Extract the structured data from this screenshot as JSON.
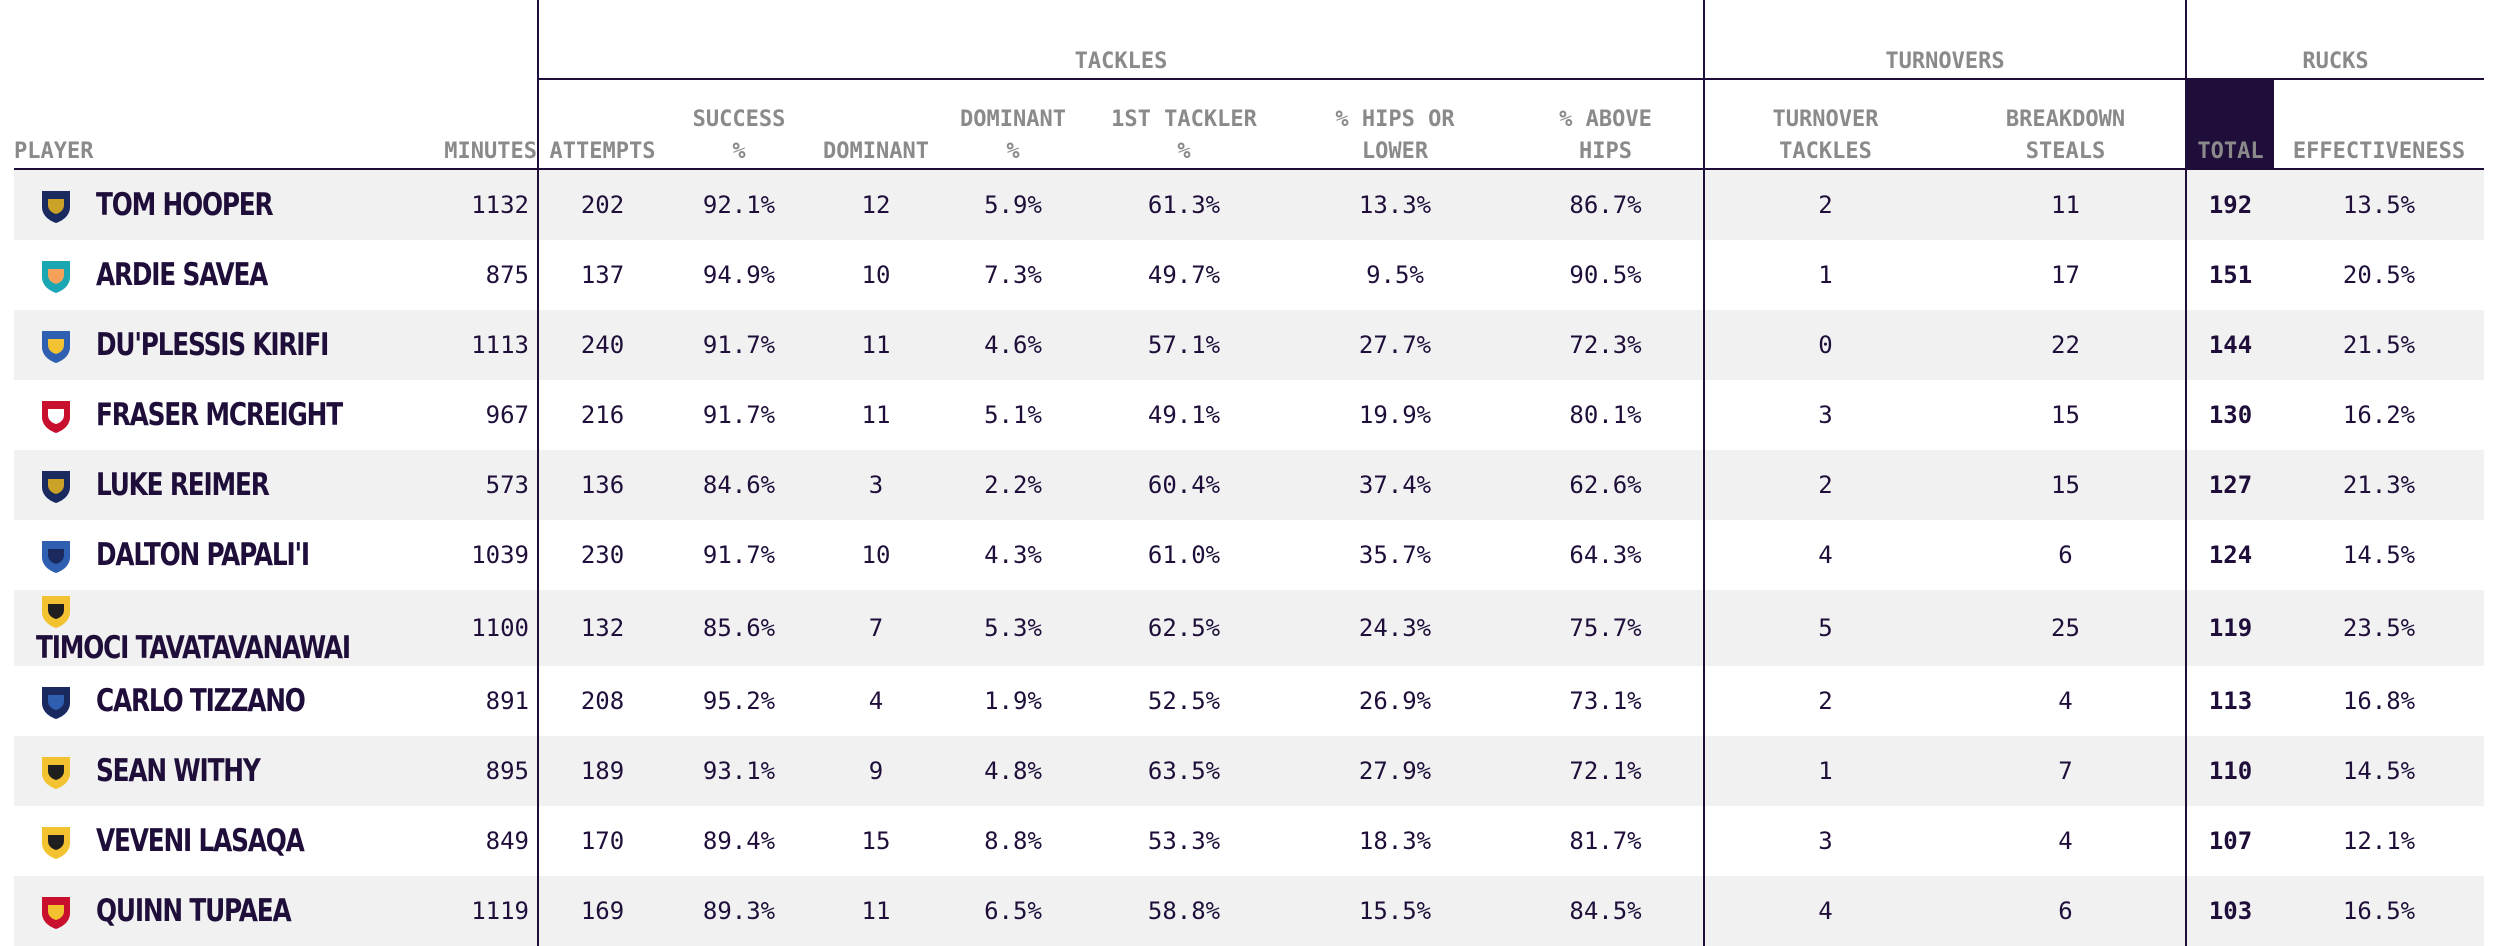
{
  "groups": {
    "tackles": "TACKLES",
    "turnovers": "TURNOVERS",
    "rucks": "RUCKS"
  },
  "columns": {
    "player": "PLAYER",
    "minutes": "MINUTES",
    "attempts": "ATTEMPTS",
    "success_1": "SUCCESS",
    "success_2": "%",
    "dominant": "DOMINANT",
    "dominant_pct_1": "DOMINANT",
    "dominant_pct_2": "%",
    "first_tackler_1": "1ST TACKLER",
    "first_tackler_2": "%",
    "hips_lower_1": "% HIPS OR",
    "hips_lower_2": "LOWER",
    "above_hips_1": "% ABOVE",
    "above_hips_2": "HIPS",
    "turnover_tackles_1": "TURNOVER",
    "turnover_tackles_2": "TACKLES",
    "breakdown_steals_1": "BREAKDOWN",
    "breakdown_steals_2": "STEALS",
    "total": "TOTAL",
    "effectiveness": "EFFECTIVENESS"
  },
  "colors": {
    "accent": "#1f0e3a",
    "header_text": "#8a8a8a",
    "row_stripe": "#f1f1f1"
  },
  "rows": [
    {
      "logo": "brumbies-logo",
      "logo_color": "#1b2a5e",
      "logo_accent": "#c9a227",
      "player": "TOM HOOPER",
      "minutes": "1132",
      "attempts": "202",
      "success": "92.1%",
      "dominant": "12",
      "dominant_pct": "5.9%",
      "first_tackler": "61.3%",
      "hips_lower": "13.3%",
      "above_hips": "86.7%",
      "turnover_tackles": "2",
      "breakdown_steals": "11",
      "total": "192",
      "effectiveness": "13.5%"
    },
    {
      "logo": "moana-pasifika-logo",
      "logo_color": "#1ba6b4",
      "logo_accent": "#f4a259",
      "player": "ARDIE SAVEA",
      "minutes": "875",
      "attempts": "137",
      "success": "94.9%",
      "dominant": "10",
      "dominant_pct": "7.3%",
      "first_tackler": "49.7%",
      "hips_lower": "9.5%",
      "above_hips": "90.5%",
      "turnover_tackles": "1",
      "breakdown_steals": "17",
      "total": "151",
      "effectiveness": "20.5%"
    },
    {
      "logo": "blues-logo",
      "logo_color": "#2e5fb0",
      "logo_accent": "#f2c230",
      "player": "DU'PLESSIS KIRIFI",
      "minutes": "1113",
      "attempts": "240",
      "success": "91.7%",
      "dominant": "11",
      "dominant_pct": "4.6%",
      "first_tackler": "57.1%",
      "hips_lower": "27.7%",
      "above_hips": "72.3%",
      "turnover_tackles": "0",
      "breakdown_steals": "22",
      "total": "144",
      "effectiveness": "21.5%"
    },
    {
      "logo": "reds-logo",
      "logo_color": "#c8102e",
      "logo_accent": "#ffffff",
      "player": "FRASER MCREIGHT",
      "minutes": "967",
      "attempts": "216",
      "success": "91.7%",
      "dominant": "11",
      "dominant_pct": "5.1%",
      "first_tackler": "49.1%",
      "hips_lower": "19.9%",
      "above_hips": "80.1%",
      "turnover_tackles": "3",
      "breakdown_steals": "15",
      "total": "130",
      "effectiveness": "16.2%"
    },
    {
      "logo": "brumbies-logo",
      "logo_color": "#1b2a5e",
      "logo_accent": "#c9a227",
      "player": "LUKE REIMER",
      "minutes": "573",
      "attempts": "136",
      "success": "84.6%",
      "dominant": "3",
      "dominant_pct": "2.2%",
      "first_tackler": "60.4%",
      "hips_lower": "37.4%",
      "above_hips": "62.6%",
      "turnover_tackles": "2",
      "breakdown_steals": "15",
      "total": "127",
      "effectiveness": "21.3%"
    },
    {
      "logo": "blues-logo",
      "logo_color": "#2e5fb0",
      "logo_accent": "#1b2a5e",
      "player": "DALTON PAPALI'I",
      "minutes": "1039",
      "attempts": "230",
      "success": "91.7%",
      "dominant": "10",
      "dominant_pct": "4.3%",
      "first_tackler": "61.0%",
      "hips_lower": "35.7%",
      "above_hips": "64.3%",
      "turnover_tackles": "4",
      "breakdown_steals": "6",
      "total": "124",
      "effectiveness": "14.5%"
    },
    {
      "logo": "hurricanes-logo",
      "logo_color": "#f2c230",
      "logo_accent": "#1f1f1f",
      "player": "TIMOCI TAVATAVANAWAI",
      "minutes": "1100",
      "attempts": "132",
      "success": "85.6%",
      "dominant": "7",
      "dominant_pct": "5.3%",
      "first_tackler": "62.5%",
      "hips_lower": "24.3%",
      "above_hips": "75.7%",
      "turnover_tackles": "5",
      "breakdown_steals": "25",
      "total": "119",
      "effectiveness": "23.5%"
    },
    {
      "logo": "force-logo",
      "logo_color": "#1b2a5e",
      "logo_accent": "#2e5fb0",
      "player": "CARLO TIZZANO",
      "minutes": "891",
      "attempts": "208",
      "success": "95.2%",
      "dominant": "4",
      "dominant_pct": "1.9%",
      "first_tackler": "52.5%",
      "hips_lower": "26.9%",
      "above_hips": "73.1%",
      "turnover_tackles": "2",
      "breakdown_steals": "4",
      "total": "113",
      "effectiveness": "16.8%"
    },
    {
      "logo": "hurricanes-logo",
      "logo_color": "#f2c230",
      "logo_accent": "#1f1f1f",
      "player": "SEAN WITHY",
      "minutes": "895",
      "attempts": "189",
      "success": "93.1%",
      "dominant": "9",
      "dominant_pct": "4.8%",
      "first_tackler": "63.5%",
      "hips_lower": "27.9%",
      "above_hips": "72.1%",
      "turnover_tackles": "1",
      "breakdown_steals": "7",
      "total": "110",
      "effectiveness": "14.5%"
    },
    {
      "logo": "hurricanes-logo",
      "logo_color": "#f2c230",
      "logo_accent": "#1f1f1f",
      "player": "VEVENI LASAQA",
      "minutes": "849",
      "attempts": "170",
      "success": "89.4%",
      "dominant": "15",
      "dominant_pct": "8.8%",
      "first_tackler": "53.3%",
      "hips_lower": "18.3%",
      "above_hips": "81.7%",
      "turnover_tackles": "3",
      "breakdown_steals": "4",
      "total": "107",
      "effectiveness": "12.1%"
    },
    {
      "logo": "chiefs-logo",
      "logo_color": "#c8102e",
      "logo_accent": "#f2c230",
      "player": "QUINN TUPAEA",
      "minutes": "1119",
      "attempts": "169",
      "success": "89.3%",
      "dominant": "11",
      "dominant_pct": "6.5%",
      "first_tackler": "58.8%",
      "hips_lower": "15.5%",
      "above_hips": "84.5%",
      "turnover_tackles": "4",
      "breakdown_steals": "6",
      "total": "103",
      "effectiveness": "16.5%"
    }
  ]
}
